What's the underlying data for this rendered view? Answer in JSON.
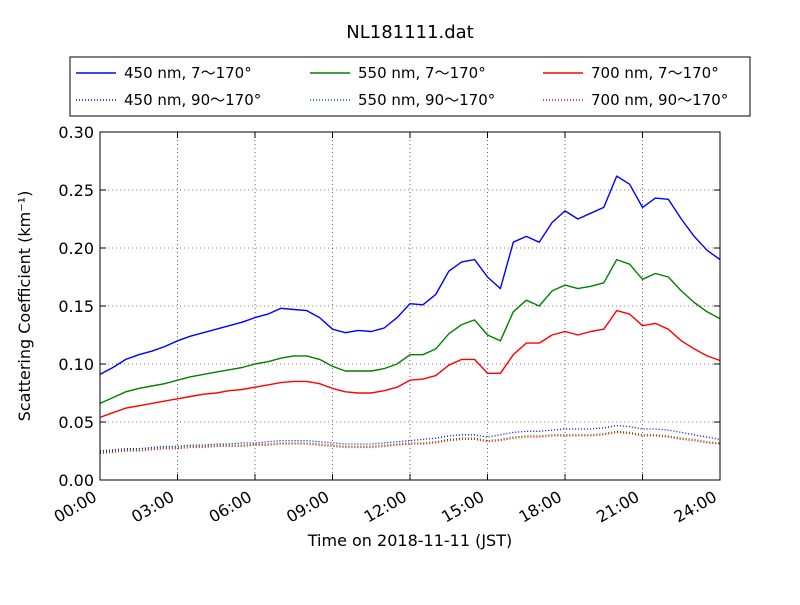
{
  "chart_data": {
    "type": "line",
    "title": "NL181111.dat",
    "xlabel": "Time on 2018-11-11 (JST)",
    "ylabel": "Scattering Coefficient (km⁻¹)",
    "xlim": [
      0,
      24
    ],
    "ylim": [
      0,
      0.3
    ],
    "grid": true,
    "legend_position": "top",
    "x_ticks": [
      {
        "value": 0,
        "label": "00:00"
      },
      {
        "value": 3,
        "label": "03:00"
      },
      {
        "value": 6,
        "label": "06:00"
      },
      {
        "value": 9,
        "label": "09:00"
      },
      {
        "value": 12,
        "label": "12:00"
      },
      {
        "value": 15,
        "label": "15:00"
      },
      {
        "value": 18,
        "label": "18:00"
      },
      {
        "value": 21,
        "label": "21:00"
      },
      {
        "value": 24,
        "label": "24:00"
      }
    ],
    "y_ticks": [
      {
        "value": 0,
        "label": "0.00"
      },
      {
        "value": 0.05,
        "label": "0.05"
      },
      {
        "value": 0.1,
        "label": "0.10"
      },
      {
        "value": 0.15,
        "label": "0.15"
      },
      {
        "value": 0.2,
        "label": "0.20"
      },
      {
        "value": 0.25,
        "label": "0.25"
      },
      {
        "value": 0.3,
        "label": "0.30"
      }
    ],
    "x": [
      0,
      0.5,
      1,
      1.5,
      2,
      2.5,
      3,
      3.5,
      4,
      4.5,
      5,
      5.5,
      6,
      6.5,
      7,
      7.5,
      8,
      8.5,
      9,
      9.5,
      10,
      10.5,
      11,
      11.5,
      12,
      12.5,
      13,
      13.5,
      14,
      14.5,
      15,
      15.5,
      16,
      16.5,
      17,
      17.5,
      18,
      18.5,
      19,
      19.5,
      20,
      20.5,
      21,
      21.5,
      22,
      22.5,
      23,
      23.5,
      24
    ],
    "series": [
      {
        "name": "450 nm, 7～170°",
        "color": "#0000ff",
        "style": "solid",
        "values": [
          0.091,
          0.097,
          0.104,
          0.108,
          0.111,
          0.115,
          0.12,
          0.124,
          0.127,
          0.13,
          0.133,
          0.136,
          0.14,
          0.143,
          0.148,
          0.147,
          0.146,
          0.14,
          0.13,
          0.127,
          0.129,
          0.128,
          0.131,
          0.14,
          0.152,
          0.151,
          0.16,
          0.18,
          0.188,
          0.19,
          0.175,
          0.165,
          0.205,
          0.21,
          0.205,
          0.222,
          0.232,
          0.225,
          0.23,
          0.235,
          0.262,
          0.255,
          0.235,
          0.243,
          0.242,
          0.225,
          0.21,
          0.198,
          0.19
        ]
      },
      {
        "name": "450 nm, 90～170°",
        "color": "#0000ff",
        "style": "dotted",
        "values": [
          0.025,
          0.026,
          0.027,
          0.027,
          0.028,
          0.029,
          0.029,
          0.03,
          0.03,
          0.031,
          0.031,
          0.032,
          0.032,
          0.033,
          0.034,
          0.034,
          0.034,
          0.033,
          0.032,
          0.031,
          0.031,
          0.031,
          0.032,
          0.033,
          0.034,
          0.035,
          0.036,
          0.038,
          0.039,
          0.039,
          0.037,
          0.039,
          0.041,
          0.042,
          0.042,
          0.043,
          0.044,
          0.044,
          0.044,
          0.045,
          0.047,
          0.046,
          0.044,
          0.044,
          0.043,
          0.041,
          0.039,
          0.037,
          0.035
        ]
      },
      {
        "name": "550 nm, 7～170°",
        "color": "#008000",
        "style": "solid",
        "values": [
          0.066,
          0.071,
          0.076,
          0.079,
          0.081,
          0.083,
          0.086,
          0.089,
          0.091,
          0.093,
          0.095,
          0.097,
          0.1,
          0.102,
          0.105,
          0.107,
          0.107,
          0.104,
          0.098,
          0.094,
          0.094,
          0.094,
          0.096,
          0.1,
          0.108,
          0.108,
          0.113,
          0.126,
          0.134,
          0.138,
          0.125,
          0.12,
          0.145,
          0.155,
          0.15,
          0.163,
          0.168,
          0.165,
          0.167,
          0.17,
          0.19,
          0.186,
          0.173,
          0.178,
          0.175,
          0.163,
          0.153,
          0.145,
          0.139
        ]
      },
      {
        "name": "550 nm, 90～170°",
        "color": "#008000",
        "style": "dotted",
        "values": [
          0.024,
          0.025,
          0.026,
          0.026,
          0.027,
          0.028,
          0.028,
          0.029,
          0.029,
          0.03,
          0.03,
          0.03,
          0.031,
          0.031,
          0.032,
          0.032,
          0.032,
          0.031,
          0.03,
          0.029,
          0.029,
          0.029,
          0.03,
          0.031,
          0.032,
          0.032,
          0.033,
          0.035,
          0.036,
          0.036,
          0.034,
          0.035,
          0.037,
          0.038,
          0.038,
          0.039,
          0.039,
          0.039,
          0.039,
          0.04,
          0.042,
          0.041,
          0.039,
          0.039,
          0.038,
          0.036,
          0.035,
          0.033,
          0.032
        ]
      },
      {
        "name": "700 nm, 7～170°",
        "color": "#ff0000",
        "style": "solid",
        "values": [
          0.054,
          0.058,
          0.062,
          0.064,
          0.066,
          0.068,
          0.07,
          0.072,
          0.074,
          0.075,
          0.077,
          0.078,
          0.08,
          0.082,
          0.084,
          0.085,
          0.085,
          0.083,
          0.079,
          0.076,
          0.075,
          0.075,
          0.077,
          0.08,
          0.086,
          0.087,
          0.09,
          0.099,
          0.104,
          0.104,
          0.092,
          0.092,
          0.108,
          0.118,
          0.118,
          0.125,
          0.128,
          0.125,
          0.128,
          0.13,
          0.146,
          0.143,
          0.133,
          0.135,
          0.13,
          0.12,
          0.113,
          0.107,
          0.103
        ]
      },
      {
        "name": "700 nm, 90～170°",
        "color": "#ff0000",
        "style": "dotted",
        "values": [
          0.023,
          0.024,
          0.025,
          0.025,
          0.026,
          0.027,
          0.027,
          0.028,
          0.028,
          0.029,
          0.029,
          0.029,
          0.03,
          0.03,
          0.031,
          0.031,
          0.031,
          0.03,
          0.029,
          0.028,
          0.028,
          0.028,
          0.029,
          0.03,
          0.031,
          0.031,
          0.032,
          0.034,
          0.035,
          0.035,
          0.033,
          0.034,
          0.036,
          0.037,
          0.037,
          0.038,
          0.038,
          0.038,
          0.038,
          0.039,
          0.041,
          0.04,
          0.038,
          0.038,
          0.037,
          0.035,
          0.034,
          0.032,
          0.031
        ]
      }
    ]
  }
}
